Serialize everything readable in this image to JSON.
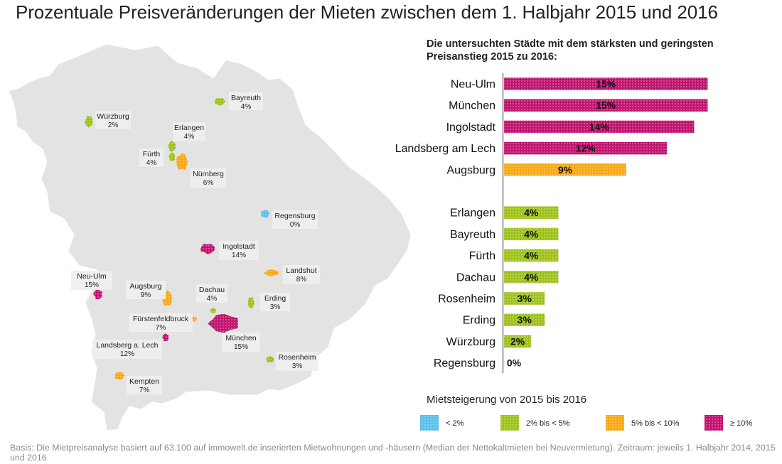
{
  "title": "Prozentuale Preisveränderungen der Mieten zwischen dem 1. Halbjahr 2015 und 2016",
  "footnote": "Basis: Die Mietpreisanalyse basiert auf 63.100 auf immowelt.de inserierten Mietwohnungen und -häusern (Median der Nettokaltmieten bei Neuvermietung). Zeitraum: jeweils 1. Halbjahr 2014, 2015 und 2016",
  "colors": {
    "lt2": "#5bc0eb",
    "2to5": "#9ec21c",
    "5to10": "#f9a913",
    "ge10": "#c0146e",
    "map_fill": "#e3e3e3",
    "label_box": "#eeeeee"
  },
  "map": {
    "cities": [
      {
        "name": "Bayreuth",
        "value": "4%",
        "cls": "2to5"
      },
      {
        "name": "Würzburg",
        "value": "2%",
        "cls": "2to5"
      },
      {
        "name": "Erlangen",
        "value": "4%",
        "cls": "2to5"
      },
      {
        "name": "Fürth",
        "value": "4%",
        "cls": "2to5"
      },
      {
        "name": "Nürnberg",
        "value": "6%",
        "cls": "5to10"
      },
      {
        "name": "Regensburg",
        "value": "0%",
        "cls": "lt2"
      },
      {
        "name": "Ingolstadt",
        "value": "14%",
        "cls": "ge10"
      },
      {
        "name": "Landshut",
        "value": "8%",
        "cls": "5to10"
      },
      {
        "name": "Neu-Ulm",
        "value": "15%",
        "cls": "ge10"
      },
      {
        "name": "Augsburg",
        "value": "9%",
        "cls": "5to10"
      },
      {
        "name": "Dachau",
        "value": "4%",
        "cls": "2to5"
      },
      {
        "name": "Erding",
        "value": "3%",
        "cls": "2to5"
      },
      {
        "name": "Fürstenfeldbruck",
        "value": "7%",
        "cls": "5to10"
      },
      {
        "name": "München",
        "value": "15%",
        "cls": "ge10"
      },
      {
        "name": "Landsberg a. Lech",
        "value": "12%",
        "cls": "ge10"
      },
      {
        "name": "Rosenheim",
        "value": "3%",
        "cls": "2to5"
      },
      {
        "name": "Kempten",
        "value": "7%",
        "cls": "5to10"
      }
    ]
  },
  "chart_data": {
    "type": "bar",
    "orientation": "horizontal",
    "title": "Die untersuchten Städte mit dem stärksten und geringsten Preisanstieg 2015 zu 2016:",
    "groups": [
      {
        "categories": [
          "Neu-Ulm",
          "München",
          "Ingolstadt",
          "Landsberg am Lech",
          "Augsburg"
        ],
        "values": [
          15,
          15,
          14,
          12,
          9
        ],
        "labels": [
          "15%",
          "15%",
          "14%",
          "12%",
          "9%"
        ],
        "classes": [
          "ge10",
          "ge10",
          "ge10",
          "ge10",
          "5to10"
        ]
      },
      {
        "categories": [
          "Erlangen",
          "Bayreuth",
          "Fürth",
          "Dachau",
          "Rosenheim",
          "Erding",
          "Würzburg",
          "Regensburg"
        ],
        "values": [
          4,
          4,
          4,
          4,
          3,
          3,
          2,
          0
        ],
        "labels": [
          "4%",
          "4%",
          "4%",
          "4%",
          "3%",
          "3%",
          "2%",
          "0%"
        ],
        "classes": [
          "2to5",
          "2to5",
          "2to5",
          "2to5",
          "2to5",
          "2to5",
          "2to5",
          "lt2"
        ]
      }
    ],
    "xlim": [
      0,
      15
    ],
    "legend": {
      "title": "Mietsteigerung von 2015 bis 2016",
      "placement": "bottom",
      "items": [
        {
          "label": "< 2%",
          "cls": "lt2"
        },
        {
          "label": "2% bis < 5%",
          "cls": "2to5"
        },
        {
          "label": "5% bis < 10%",
          "cls": "5to10"
        },
        {
          "label": "≥ 10%",
          "cls": "ge10"
        }
      ]
    }
  }
}
